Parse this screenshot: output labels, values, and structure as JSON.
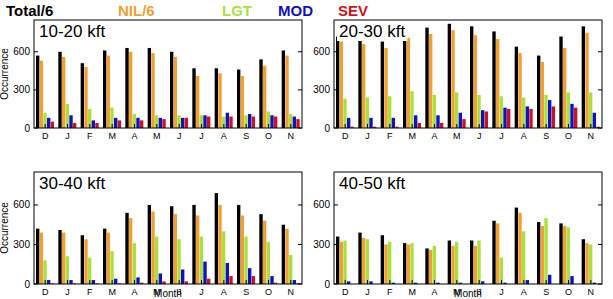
{
  "chart_data": [
    {
      "type": "bar",
      "title": "10-20 kft",
      "y_label": "Occurrence",
      "categories": [
        "D",
        "J",
        "F",
        "M",
        "A",
        "M",
        "J",
        "J",
        "A",
        "S",
        "O",
        "N"
      ],
      "ylim": [
        0,
        850
      ],
      "yticks": [
        0,
        300,
        600
      ],
      "series": [
        {
          "name": "Total/6",
          "color": "#000000",
          "values": [
            570,
            600,
            510,
            610,
            630,
            630,
            600,
            470,
            470,
            460,
            540,
            610
          ]
        },
        {
          "name": "NIL/6",
          "color": "#f0a030",
          "values": [
            530,
            560,
            480,
            570,
            600,
            590,
            560,
            410,
            430,
            410,
            490,
            570
          ]
        },
        {
          "name": "LGT",
          "color": "#a8e040",
          "values": [
            120,
            190,
            150,
            160,
            110,
            100,
            100,
            100,
            90,
            100,
            130,
            110
          ]
        },
        {
          "name": "MOD",
          "color": "#1010c8",
          "values": [
            80,
            100,
            60,
            80,
            80,
            80,
            80,
            100,
            120,
            110,
            100,
            90
          ]
        },
        {
          "name": "SEV",
          "color": "#d01020",
          "values": [
            50,
            40,
            40,
            60,
            60,
            70,
            80,
            90,
            90,
            90,
            90,
            70
          ]
        }
      ]
    },
    {
      "type": "bar",
      "title": "20-30 kft",
      "categories": [
        "D",
        "J",
        "F",
        "M",
        "A",
        "M",
        "J",
        "J",
        "A",
        "S",
        "O",
        "N"
      ],
      "ylim": [
        0,
        850
      ],
      "yticks": [
        0,
        300,
        600
      ],
      "series": [
        {
          "name": "Total/6",
          "color": "#000000",
          "values": [
            720,
            710,
            680,
            760,
            790,
            820,
            800,
            760,
            640,
            570,
            720,
            800
          ]
        },
        {
          "name": "NIL/6",
          "color": "#f0a030",
          "values": [
            680,
            660,
            630,
            710,
            740,
            770,
            730,
            700,
            590,
            520,
            630,
            750
          ]
        },
        {
          "name": "LGT",
          "color": "#a8e040",
          "values": [
            230,
            240,
            250,
            290,
            260,
            280,
            260,
            250,
            240,
            260,
            280,
            280
          ]
        },
        {
          "name": "MOD",
          "color": "#1010c8",
          "values": [
            80,
            80,
            80,
            100,
            100,
            120,
            140,
            160,
            170,
            220,
            190,
            120
          ]
        },
        {
          "name": "SEV",
          "color": "#d01020",
          "values": [
            10,
            10,
            10,
            40,
            40,
            70,
            130,
            150,
            150,
            170,
            160,
            10
          ]
        }
      ]
    },
    {
      "type": "bar",
      "title": "30-40 kft",
      "x_label": "Month",
      "y_label": "Occurrence",
      "categories": [
        "D",
        "J",
        "F",
        "M",
        "A",
        "M",
        "J",
        "J",
        "A",
        "S",
        "O",
        "N"
      ],
      "ylim": [
        0,
        850
      ],
      "yticks": [
        0,
        300,
        600
      ],
      "series": [
        {
          "name": "Total/6",
          "color": "#000000",
          "values": [
            420,
            410,
            370,
            420,
            540,
            600,
            590,
            600,
            690,
            600,
            530,
            450
          ]
        },
        {
          "name": "NIL/6",
          "color": "#f0a030",
          "values": [
            390,
            390,
            340,
            390,
            500,
            550,
            530,
            520,
            600,
            520,
            480,
            420
          ]
        },
        {
          "name": "LGT",
          "color": "#a8e040",
          "values": [
            180,
            210,
            200,
            250,
            310,
            360,
            340,
            360,
            400,
            360,
            320,
            220
          ]
        },
        {
          "name": "MOD",
          "color": "#1010c8",
          "values": [
            30,
            30,
            30,
            40,
            50,
            80,
            110,
            170,
            160,
            120,
            60,
            30
          ]
        },
        {
          "name": "SEV",
          "color": "#d01020",
          "values": [
            5,
            5,
            5,
            5,
            10,
            20,
            20,
            40,
            60,
            60,
            10,
            5
          ]
        }
      ]
    },
    {
      "type": "bar",
      "title": "40-50 kft",
      "x_label": "Month",
      "categories": [
        "D",
        "J",
        "F",
        "M",
        "A",
        "M",
        "J",
        "J",
        "A",
        "S",
        "O",
        "N"
      ],
      "ylim": [
        0,
        850
      ],
      "yticks": [
        0,
        300,
        600
      ],
      "series": [
        {
          "name": "Total/6",
          "color": "#000000",
          "values": [
            360,
            390,
            370,
            310,
            270,
            330,
            330,
            480,
            580,
            470,
            460,
            340
          ]
        },
        {
          "name": "NIL/6",
          "color": "#f0a030",
          "values": [
            320,
            350,
            300,
            300,
            260,
            290,
            290,
            460,
            540,
            440,
            440,
            310
          ]
        },
        {
          "name": "LGT",
          "color": "#a8e040",
          "values": [
            330,
            340,
            320,
            310,
            290,
            320,
            330,
            200,
            400,
            500,
            430,
            300
          ]
        },
        {
          "name": "MOD",
          "color": "#1010c8",
          "values": [
            20,
            20,
            10,
            10,
            10,
            10,
            20,
            10,
            30,
            70,
            60,
            10
          ]
        },
        {
          "name": "SEV",
          "color": "#d01020",
          "values": [
            0,
            0,
            0,
            0,
            0,
            0,
            0,
            0,
            0,
            0,
            0,
            0
          ]
        }
      ]
    }
  ]
}
